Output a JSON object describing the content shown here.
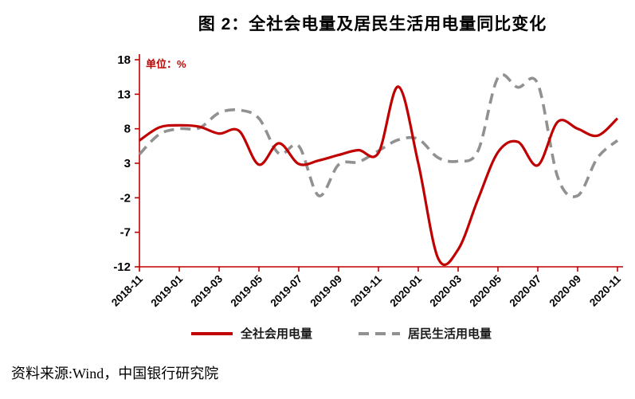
{
  "title": "图 2：全社会电量及居民生活用电量同比变化",
  "unit_label": "单位：%",
  "source_note": "资料来源:Wind，中国银行研究院",
  "colors": {
    "series1": "#c00000",
    "series2": "#919191",
    "axis": "#c00000",
    "text": "#000000",
    "background": "#ffffff"
  },
  "chart_data": {
    "type": "line",
    "x": [
      "2018-11",
      "2018-12",
      "2019-01",
      "2019-02",
      "2019-03",
      "2019-04",
      "2019-05",
      "2019-06",
      "2019-07",
      "2019-08",
      "2019-09",
      "2019-10",
      "2019-11",
      "2019-12",
      "2020-01",
      "2020-02",
      "2020-03",
      "2020-04",
      "2020-05",
      "2020-06",
      "2020-07",
      "2020-08",
      "2020-09",
      "2020-10",
      "2020-11"
    ],
    "x_tick_labels": [
      "2018-11",
      "2019-01",
      "2019-03",
      "2019-05",
      "2019-07",
      "2019-09",
      "2019-11",
      "2020-01",
      "2020-03",
      "2020-05",
      "2020-07",
      "2020-09",
      "2020-11"
    ],
    "ylim": [
      -12,
      18
    ],
    "yticks": [
      18,
      13,
      8,
      3,
      -2,
      -7,
      -12
    ],
    "grid": false,
    "legend_position": "bottom",
    "series": [
      {
        "name": "全社会用电量",
        "color": "#c00000",
        "style": "solid",
        "values": [
          6.3,
          8.2,
          8.5,
          8.3,
          7.3,
          7.7,
          2.8,
          5.9,
          2.9,
          3.4,
          4.2,
          4.9,
          4.5,
          14.1,
          3.0,
          -10.8,
          -9.5,
          -2.2,
          4.6,
          6.1,
          2.7,
          9.0,
          8.0,
          7.0,
          9.5
        ]
      },
      {
        "name": "居民生活用电量",
        "color": "#919191",
        "style": "dashed",
        "values": [
          4.3,
          7.2,
          8.0,
          8.1,
          10.3,
          10.7,
          9.5,
          4.4,
          5.5,
          -1.7,
          2.8,
          3.2,
          4.8,
          6.4,
          6.5,
          3.8,
          3.3,
          4.8,
          15.4,
          14.0,
          14.5,
          1.0,
          -1.7,
          3.8,
          6.3
        ]
      }
    ]
  }
}
